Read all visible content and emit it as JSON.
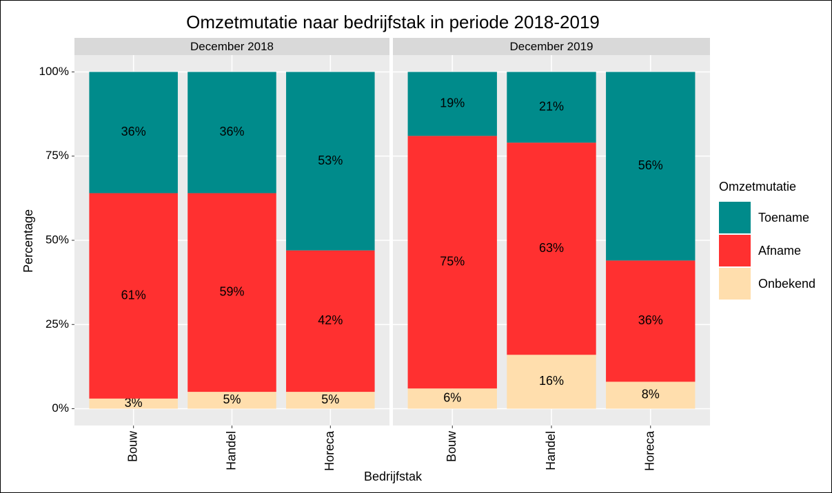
{
  "chart_data": {
    "type": "bar",
    "stacked": true,
    "title": "Omzetmutatie naar bedrijfstak in periode 2018-2019",
    "xlabel": "Bedrijfstak",
    "ylabel": "Percentage",
    "legend_title": "Omzetmutatie",
    "legend": "right",
    "grid": true,
    "ylim": [
      -5,
      105
    ],
    "yticks": [
      {
        "value": 0,
        "label": "0%"
      },
      {
        "value": 25,
        "label": "25%"
      },
      {
        "value": 50,
        "label": "50%"
      },
      {
        "value": 75,
        "label": "75%"
      },
      {
        "value": 100,
        "label": "100%"
      }
    ],
    "series": [
      {
        "name": "Toename",
        "color": "#008b8b"
      },
      {
        "name": "Afname",
        "color": "#ff3030"
      },
      {
        "name": "Onbekend",
        "color": "#ffdead"
      }
    ],
    "facets": [
      {
        "title": "December 2018",
        "categories": [
          "Bouw",
          "Handel",
          "Horeca"
        ],
        "values": [
          [
            36,
            36,
            53
          ],
          [
            61,
            59,
            42
          ],
          [
            3,
            5,
            5
          ]
        ],
        "value_labels": [
          [
            "36%",
            "36%",
            "53%"
          ],
          [
            "61%",
            "59%",
            "42%"
          ],
          [
            "3%",
            "5%",
            "5%"
          ]
        ]
      },
      {
        "title": "December 2019",
        "categories": [
          "Bouw",
          "Handel",
          "Horeca"
        ],
        "values": [
          [
            19,
            21,
            56
          ],
          [
            75,
            63,
            36
          ],
          [
            6,
            16,
            8
          ]
        ],
        "value_labels": [
          [
            "19%",
            "21%",
            "56%"
          ],
          [
            "75%",
            "63%",
            "36%"
          ],
          [
            "6%",
            "16%",
            "8%"
          ]
        ]
      }
    ]
  }
}
